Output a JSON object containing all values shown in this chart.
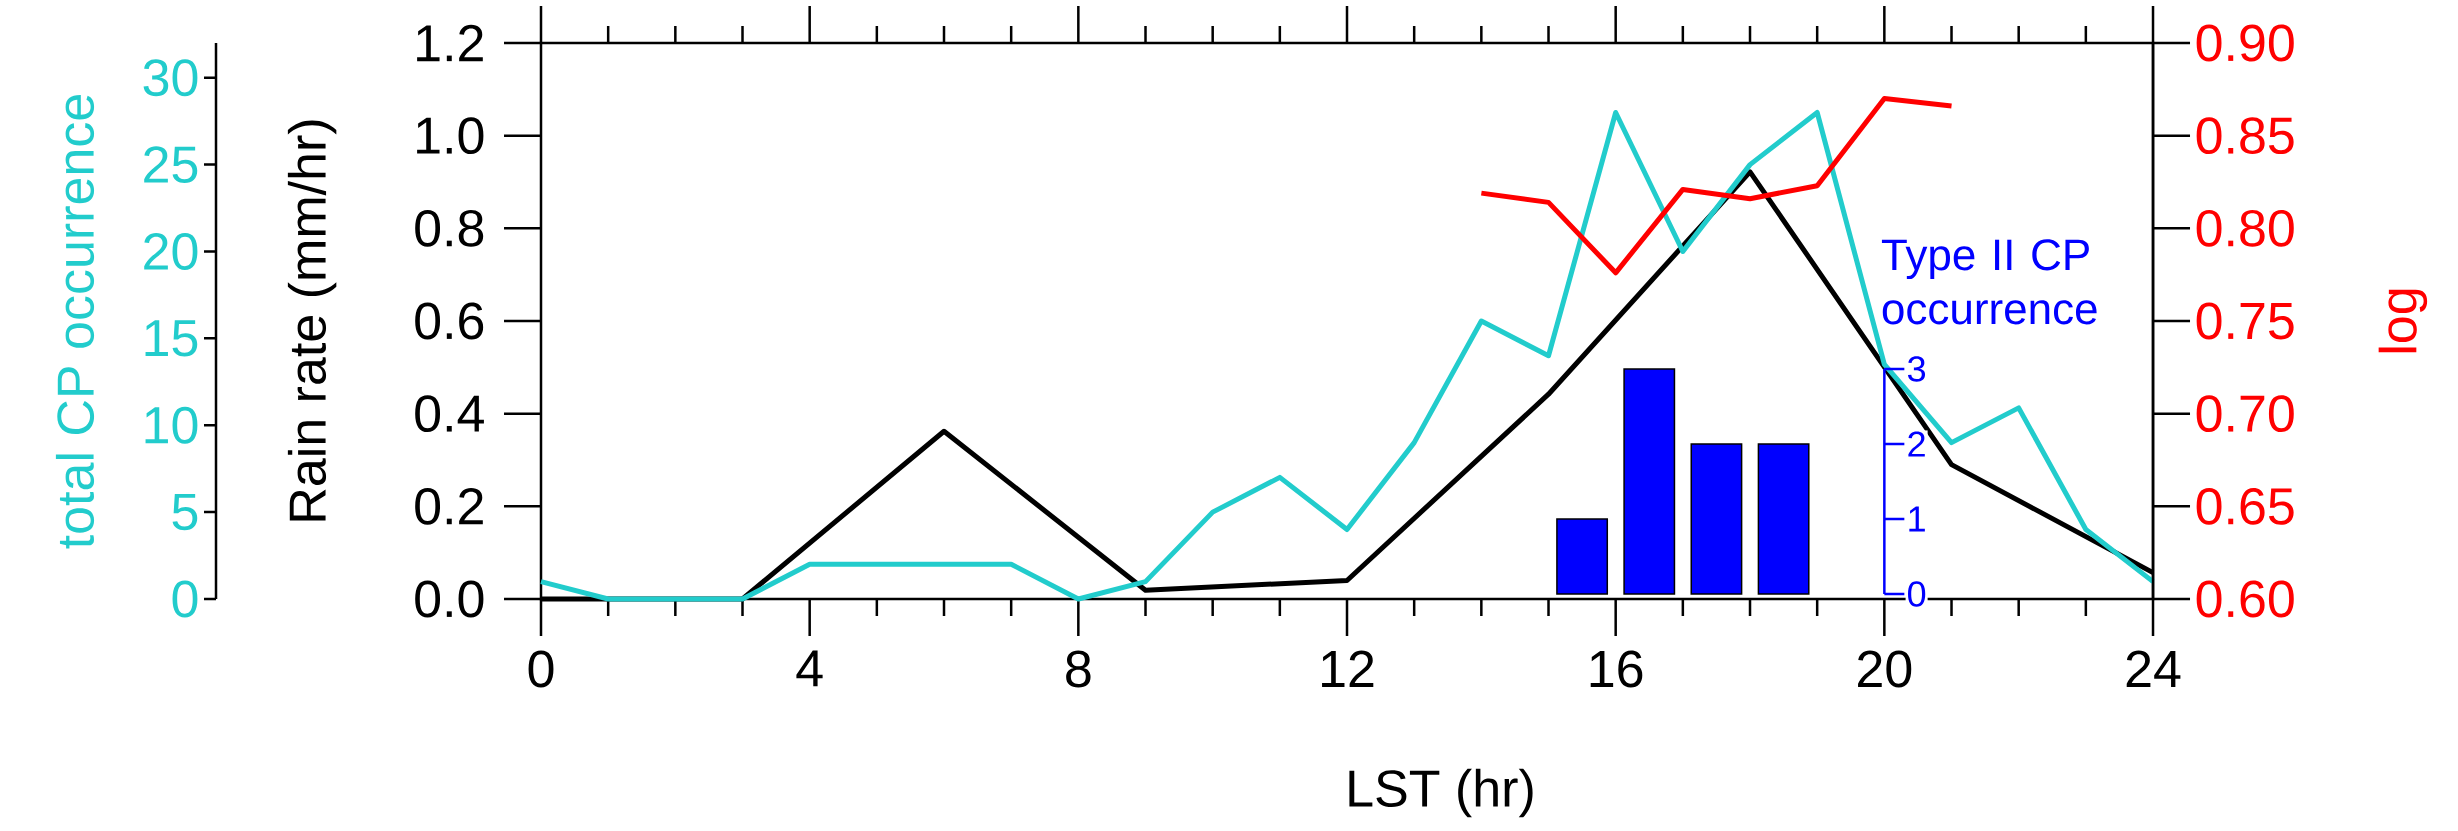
{
  "chart_data": [
    {
      "type": "line",
      "xlabel": "LST (hr)",
      "ylabel": "Rain rate (mm/hr)",
      "y2label": "log",
      "y3label": "total CP occurrence",
      "xlim": [
        0,
        24
      ],
      "xticks": [
        0,
        4,
        8,
        12,
        16,
        20,
        24
      ],
      "ylim": [
        0,
        1.2
      ],
      "yticks": [
        {
          "value": 0,
          "label": "0.0"
        },
        0.2,
        0.4,
        0.6,
        0.8,
        {
          "value": 1,
          "label": "1.0"
        },
        1.2
      ],
      "y2lim": [
        0.6,
        0.9
      ],
      "y2ticks": [
        {
          "value": 0.6,
          "label": "0.60"
        },
        {
          "value": 0.65,
          "label": "0.65"
        },
        {
          "value": 0.7,
          "label": "0.70"
        },
        {
          "value": 0.75,
          "label": "0.75"
        },
        {
          "value": 0.8,
          "label": "0.80"
        },
        {
          "value": 0.85,
          "label": "0.85"
        },
        {
          "value": 0.9,
          "label": "0.90"
        }
      ],
      "y3lim": [
        0,
        32
      ],
      "y3ticks": [
        0,
        5,
        10,
        15,
        20,
        25,
        30
      ],
      "series": [
        {
          "color": "#000000",
          "x": [
            0,
            3,
            6,
            9,
            12,
            15,
            18,
            21,
            24
          ],
          "values": [
            0,
            0,
            0.362,
            0.019,
            0.04,
            0.442,
            0.922,
            0.29,
            0.057
          ]
        },
        {
          "axis": "y3",
          "color": "#22cccc",
          "x": [
            0,
            1,
            2,
            3,
            4,
            5,
            6,
            7,
            8,
            9,
            10,
            11,
            12,
            13,
            14,
            15,
            16,
            17,
            18,
            19,
            20,
            21,
            22,
            23,
            24
          ],
          "values": [
            1,
            0,
            0,
            0,
            2,
            2,
            2,
            2,
            0,
            1,
            5,
            7,
            4,
            9,
            16,
            14,
            28,
            20,
            25,
            28,
            13.5,
            9,
            11,
            4,
            1
          ]
        },
        {
          "axis": "y2",
          "color": "#ff0000",
          "x": [
            14,
            15,
            16,
            17,
            18,
            19,
            20,
            21
          ],
          "values": [
            0.819,
            0.814,
            0.776,
            0.821,
            0.816,
            0.823,
            0.87,
            0.866
          ]
        }
      ]
    },
    {
      "type": "bar",
      "ylabel": "Type II CP occurrence",
      "categories": [
        null,
        null,
        null,
        null
      ],
      "ylim": [
        0,
        3
      ],
      "yticks": [
        0,
        1,
        2,
        3
      ],
      "tick_labels": "y",
      "series": [
        {
          "color": "#0000ff",
          "values": [
            1,
            3,
            2,
            2
          ]
        }
      ]
    }
  ]
}
